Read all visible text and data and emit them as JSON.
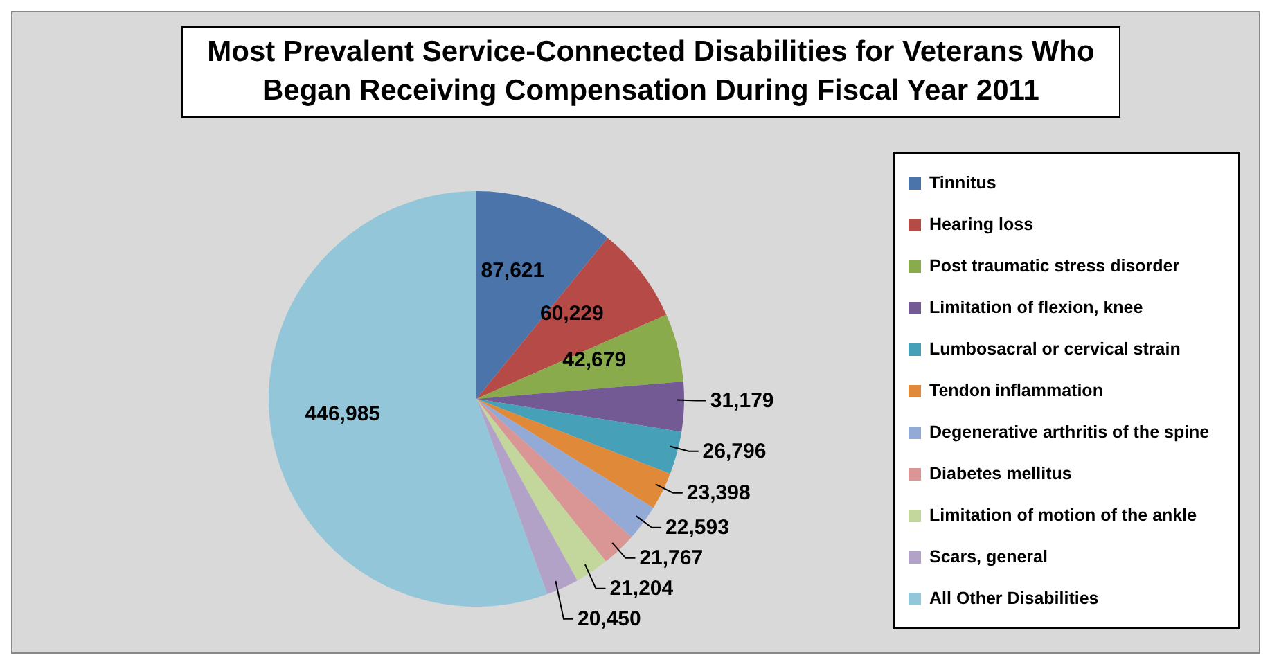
{
  "chart_data": {
    "type": "pie",
    "title": "Most Prevalent Service-Connected Disabilities for Veterans Who Began Receiving Compensation During Fiscal Year 2011",
    "categories": [
      "Tinnitus",
      "Hearing loss",
      "Post traumatic stress disorder",
      "Limitation of flexion, knee",
      "Lumbosacral or cervical strain",
      "Tendon inflammation",
      "Degenerative arthritis of the spine",
      "Diabetes mellitus",
      "Limitation of motion of the ankle",
      "Scars, general",
      "All Other Disabilities"
    ],
    "values": [
      87621,
      60229,
      42679,
      31179,
      26796,
      23398,
      22593,
      21767,
      21204,
      20450,
      446985
    ],
    "value_labels": [
      "87,621",
      "60,229",
      "42,679",
      "31,179",
      "26,796",
      "23,398",
      "22,593",
      "21,767",
      "21,204",
      "20,450",
      "446,985"
    ],
    "colors": [
      "#4a74aa",
      "#b64a47",
      "#8aab4c",
      "#735a94",
      "#45a0b8",
      "#e08939",
      "#93aad6",
      "#d99694",
      "#c3d69b",
      "#b3a2c7",
      "#93c6d8"
    ],
    "legend": "right"
  }
}
